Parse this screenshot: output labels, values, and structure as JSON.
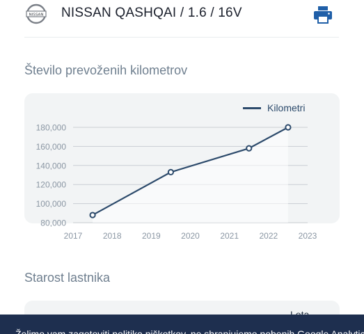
{
  "header": {
    "title": "NISSAN QASHQAI / 1.6 / 16V",
    "logo_text": "NISSAN",
    "print_icon": "printer-icon"
  },
  "mileage_section": {
    "title": "Število prevoženih kilometrov"
  },
  "owner_section": {
    "title": "Starost lastnika",
    "partial_label": "Leta"
  },
  "cookie_banner": {
    "text": "Želimo vam zagotoviti politiko piškotkov, ne shranjujemo nobenih Google Analytics ki"
  },
  "colors": {
    "accent": "#2c4a6b",
    "print_icon": "#1f5fa8",
    "card_bg": "#f2f4f5",
    "banner_bg": "#1e2f4f"
  },
  "chart_data": {
    "type": "line",
    "title": "",
    "xlabel": "",
    "ylabel": "",
    "x_ticks": [
      "2017",
      "2018",
      "2019",
      "2020",
      "2021",
      "2022",
      "2023"
    ],
    "y_ticks": [
      "80,000",
      "100,000",
      "120,000",
      "140,000",
      "160,000",
      "180,000"
    ],
    "xlim": [
      2017,
      2023
    ],
    "ylim": [
      80000,
      180000
    ],
    "grid": "horizontal",
    "legend": "top-right",
    "series": [
      {
        "name": "Kilometri",
        "x": [
          2017.5,
          2019.5,
          2021.5,
          2022.5
        ],
        "y": [
          88000,
          133000,
          158000,
          180000
        ]
      }
    ]
  }
}
